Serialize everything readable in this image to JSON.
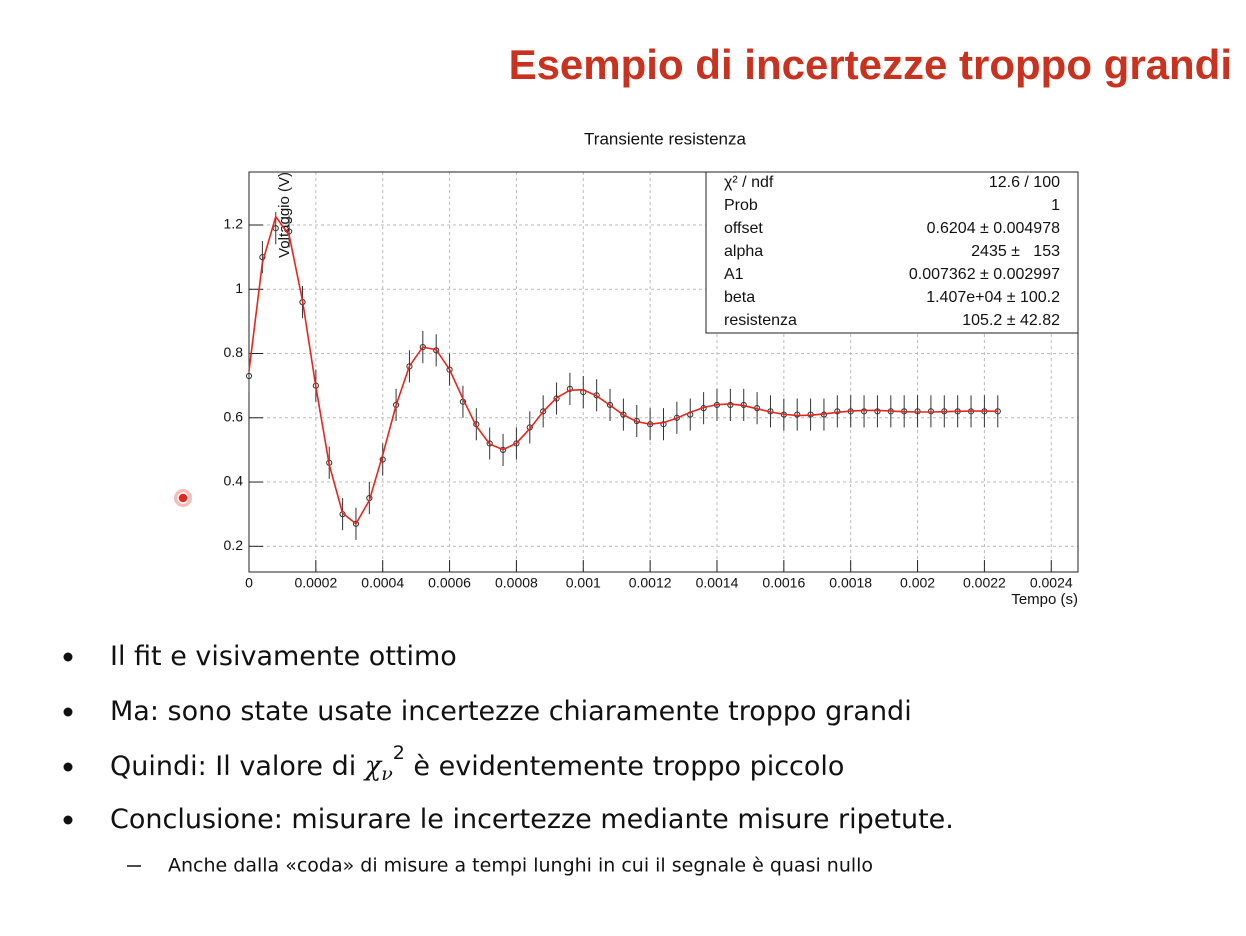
{
  "title": "Esempio di incertezze troppo grandi",
  "chart_data": {
    "type": "scatter",
    "title": "Transiente resistenza",
    "x_label": "Tempo (s)",
    "y_label": "Voltaggio (V)",
    "x": [
      0,
      4e-05,
      8e-05,
      0.00012,
      0.00016,
      0.0002,
      0.00024,
      0.00028,
      0.00032,
      0.00036,
      0.0004,
      0.00044,
      0.00048,
      0.00052,
      0.00056,
      0.0006,
      0.00064,
      0.00068,
      0.00072,
      0.00076,
      0.0008,
      0.00084,
      0.00088,
      0.00092,
      0.00096,
      0.001,
      0.00104,
      0.00108,
      0.00112,
      0.00116,
      0.0012,
      0.00124,
      0.00128,
      0.00132,
      0.00136,
      0.0014,
      0.00144,
      0.00148,
      0.00152,
      0.00156,
      0.0016,
      0.00164,
      0.00168,
      0.00172,
      0.00176,
      0.0018,
      0.00184,
      0.00188,
      0.00192,
      0.00196,
      0.002,
      0.00204,
      0.00208,
      0.00212,
      0.00216,
      0.0022,
      0.00224
    ],
    "values": [
      0.73,
      1.1,
      1.19,
      1.18,
      0.96,
      0.7,
      0.46,
      0.3,
      0.27,
      0.35,
      0.47,
      0.64,
      0.76,
      0.82,
      0.81,
      0.75,
      0.65,
      0.58,
      0.52,
      0.5,
      0.52,
      0.57,
      0.62,
      0.66,
      0.69,
      0.68,
      0.67,
      0.64,
      0.61,
      0.59,
      0.58,
      0.58,
      0.6,
      0.61,
      0.63,
      0.64,
      0.64,
      0.64,
      0.63,
      0.62,
      0.61,
      0.61,
      0.61,
      0.61,
      0.62,
      0.62,
      0.62,
      0.62,
      0.62,
      0.62,
      0.62,
      0.62,
      0.62,
      0.62,
      0.62,
      0.62,
      0.62
    ],
    "errors": [
      0.05,
      0.05,
      0.05,
      0.05,
      0.05,
      0.05,
      0.05,
      0.05,
      0.05,
      0.05,
      0.05,
      0.05,
      0.05,
      0.05,
      0.05,
      0.05,
      0.05,
      0.05,
      0.05,
      0.05,
      0.05,
      0.05,
      0.05,
      0.05,
      0.05,
      0.05,
      0.05,
      0.05,
      0.05,
      0.05,
      0.05,
      0.05,
      0.05,
      0.05,
      0.05,
      0.05,
      0.05,
      0.05,
      0.05,
      0.05,
      0.05,
      0.05,
      0.05,
      0.05,
      0.05,
      0.05,
      0.05,
      0.05,
      0.05,
      0.05,
      0.05,
      0.05,
      0.05,
      0.05,
      0.05,
      0.05,
      0.05
    ],
    "color": "#333333",
    "fit": {
      "color": "#e8251c",
      "values": [
        0.745,
        1.082,
        1.226,
        1.169,
        0.965,
        0.697,
        0.454,
        0.303,
        0.27,
        0.343,
        0.484,
        0.639,
        0.761,
        0.82,
        0.812,
        0.75,
        0.659,
        0.574,
        0.518,
        0.501,
        0.521,
        0.566,
        0.619,
        0.662,
        0.686,
        0.687,
        0.668,
        0.639,
        0.609,
        0.588,
        0.58,
        0.585,
        0.599,
        0.617,
        0.632,
        0.641,
        0.643,
        0.638,
        0.628,
        0.618,
        0.611,
        0.607,
        0.608,
        0.612,
        0.617,
        0.621,
        0.623,
        0.623,
        0.621,
        0.619,
        0.618,
        0.618,
        0.619,
        0.62,
        0.621,
        0.621,
        0.62
      ]
    },
    "xlim": [
      0,
      0.00248
    ],
    "ylim": [
      0.12,
      1.365
    ],
    "xticks": [
      0,
      0.0002,
      0.0004,
      0.0006,
      0.0008,
      0.001,
      0.0012,
      0.0014,
      0.0016,
      0.0018,
      0.002,
      0.0022,
      0.0024
    ],
    "yticks": [
      0.2,
      0.4,
      0.6,
      0.8,
      1,
      1.2
    ],
    "grid": true,
    "stats": [
      {
        "label": "χ² / ndf",
        "value": "12.6 / 100"
      },
      {
        "label": "Prob",
        "value": "1"
      },
      {
        "label": "offset",
        "value": "0.6204 ± 0.004978"
      },
      {
        "label": "alpha",
        "value": "2435 ±   153"
      },
      {
        "label": "A1",
        "value": "0.007362 ± 0.002997"
      },
      {
        "label": "beta",
        "value": "1.407e+04 ± 100.2"
      },
      {
        "label": "resistenza",
        "value": "105.2 ± 42.82"
      }
    ]
  },
  "bullets": [
    {
      "parts": [
        "Il fit e visivamente ottimo"
      ]
    },
    {
      "parts": [
        "Ma: sono state usate incertezze chiaramente troppo grandi"
      ]
    },
    {
      "parts": [
        "Quindi: Il valore di ",
        "χ",
        "ν",
        "2",
        " è evidentemente troppo piccolo"
      ]
    },
    {
      "parts": [
        "Conclusione: misurare le incertezze mediante misure ripetute."
      ]
    }
  ],
  "sub_bullets": [
    "Anche dalla «coda» di misure a tempi lunghi in cui il segnale è quasi nullo"
  ]
}
